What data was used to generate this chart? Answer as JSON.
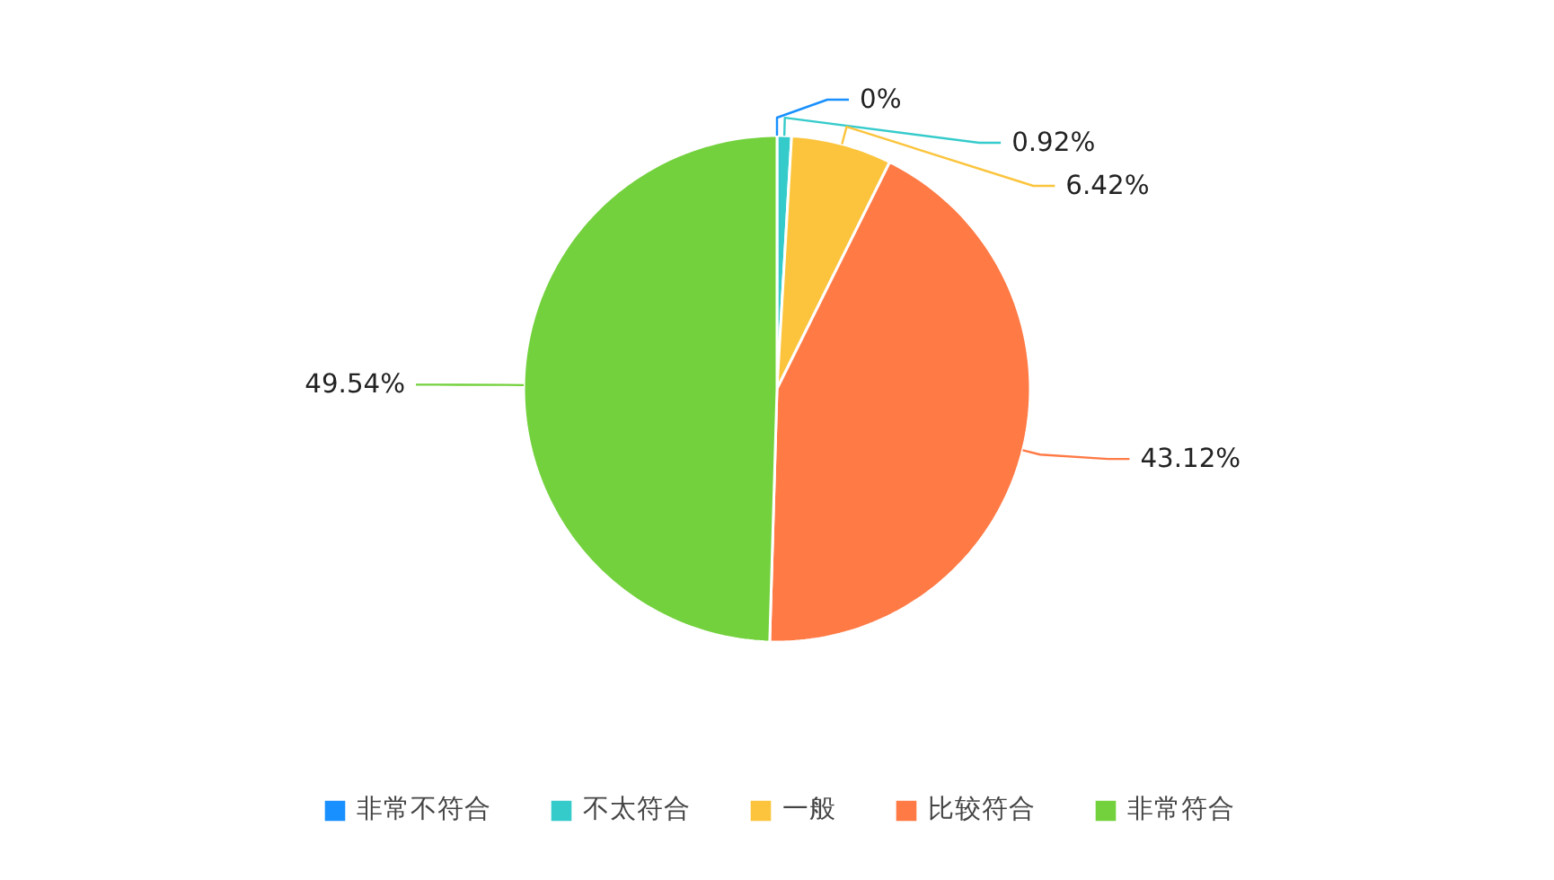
{
  "chart_data": {
    "type": "pie",
    "categories": [
      "非常不符合",
      "不太符合",
      "一般",
      "比较符合",
      "非常符合"
    ],
    "values": [
      0,
      0.92,
      6.42,
      43.12,
      49.54
    ],
    "colors": [
      "#1890ff",
      "#36cbcb",
      "#fbc43c",
      "#ff7a45",
      "#73d13d"
    ],
    "value_labels": [
      "0%",
      "0.92%",
      "6.42%",
      "43.12%",
      "49.54%"
    ],
    "legend": "bottom"
  }
}
